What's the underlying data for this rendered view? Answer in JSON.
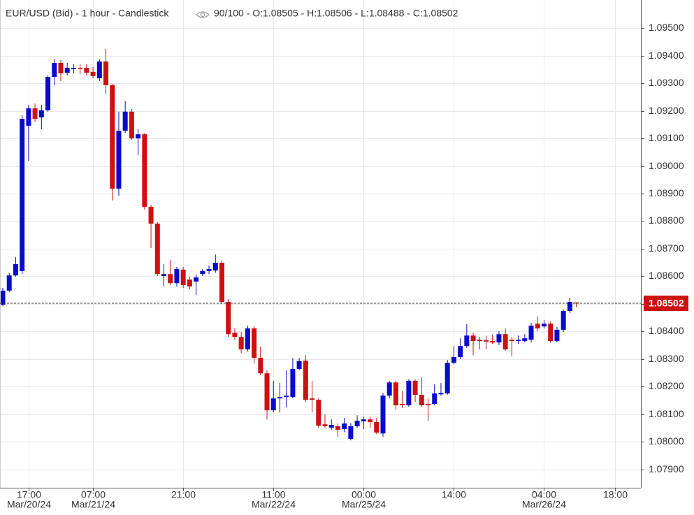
{
  "chart_data": {
    "type": "candlestick",
    "title": "EUR/USD (Bid) - 1 hour - Candlestick",
    "header_stats": "90/100 - O:1.08505 - H:1.08506 - L:1.08488 - C:1.08502",
    "up_color": "#0a0acc",
    "down_color": "#cc1111",
    "grid": true,
    "ylim": [
      1.07833,
      1.09602
    ],
    "yticks": [
      {
        "value": 1.079,
        "label": "1.07900"
      },
      {
        "value": 1.08,
        "label": "1.08000"
      },
      {
        "value": 1.081,
        "label": "1.08100"
      },
      {
        "value": 1.082,
        "label": "1.08200"
      },
      {
        "value": 1.083,
        "label": "1.08300"
      },
      {
        "value": 1.084,
        "label": "1.08400"
      },
      {
        "value": 1.085,
        "label": "1.08500"
      },
      {
        "value": 1.086,
        "label": "1.08600"
      },
      {
        "value": 1.087,
        "label": "1.08700"
      },
      {
        "value": 1.088,
        "label": "1.08800"
      },
      {
        "value": 1.089,
        "label": "1.08900"
      },
      {
        "value": 1.09,
        "label": "1.09000"
      },
      {
        "value": 1.091,
        "label": "1.09100"
      },
      {
        "value": 1.092,
        "label": "1.09200"
      },
      {
        "value": 1.093,
        "label": "1.09300"
      },
      {
        "value": 1.094,
        "label": "1.09400"
      },
      {
        "value": 1.095,
        "label": "1.09500"
      }
    ],
    "last_price": 1.08502,
    "categories": [
      null,
      null,
      null,
      null,
      "17:00",
      null,
      null,
      null,
      null,
      null,
      null,
      null,
      null,
      null,
      "07:00",
      null,
      null,
      null,
      null,
      null,
      null,
      null,
      null,
      null,
      null,
      null,
      null,
      null,
      "21:00",
      null,
      null,
      null,
      null,
      null,
      null,
      null,
      null,
      null,
      null,
      null,
      null,
      null,
      "11:00",
      null,
      null,
      null,
      null,
      null,
      null,
      null,
      null,
      null,
      null,
      null,
      null,
      null,
      "00:00",
      null,
      null,
      null,
      null,
      null,
      null,
      null,
      null,
      null,
      null,
      null,
      null,
      null,
      "14:00",
      null,
      null,
      null,
      null,
      null,
      null,
      null,
      null,
      null,
      null,
      null,
      null,
      null,
      "04:00",
      null,
      null,
      null,
      null,
      null,
      null,
      null,
      null,
      null,
      null,
      "18:00"
    ],
    "dates": [
      null,
      null,
      null,
      null,
      "Mar/20/24",
      null,
      null,
      null,
      null,
      null,
      null,
      null,
      null,
      null,
      "Mar/21/24",
      null,
      null,
      null,
      null,
      null,
      null,
      null,
      null,
      null,
      null,
      null,
      null,
      null,
      null,
      null,
      null,
      null,
      null,
      null,
      null,
      null,
      null,
      null,
      null,
      null,
      null,
      null,
      "Mar/22/24",
      null,
      null,
      null,
      null,
      null,
      null,
      null,
      null,
      null,
      null,
      null,
      null,
      null,
      "Mar/25/24",
      null,
      null,
      null,
      null,
      null,
      null,
      null,
      null,
      null,
      null,
      null,
      null,
      null,
      null,
      null,
      null,
      null,
      null,
      null,
      null,
      null,
      null,
      null,
      null,
      null,
      null,
      null,
      "Mar/26/24",
      null,
      null,
      null,
      null,
      null,
      null,
      null,
      null,
      null,
      null,
      null
    ],
    "open": [
      1.08497,
      1.08548,
      1.08603,
      1.08619,
      1.09146,
      1.09209,
      1.09176,
      1.09202,
      1.09323,
      1.09374,
      1.09338,
      1.09351,
      1.09356,
      1.09356,
      1.09341,
      1.09318,
      1.09379,
      1.09293,
      1.08918,
      1.09128,
      1.09197,
      1.091,
      1.09115,
      1.08852,
      1.08791,
      1.08601,
      1.08608,
      1.08575,
      1.08624,
      1.08588,
      1.08581,
      1.08608,
      1.08619,
      1.08621,
      1.08649,
      1.08507,
      1.08395,
      1.0838,
      1.08335,
      1.08411,
      1.08304,
      1.08248,
      1.08114,
      1.08157,
      1.08162,
      1.08162,
      1.08264,
      1.08294,
      1.08157,
      1.08152,
      1.08063,
      1.08051,
      1.08056,
      1.08046,
      1.0801,
      1.08056,
      1.08074,
      1.08081,
      1.08071,
      1.0803,
      1.08167,
      1.08215,
      1.08137,
      1.08132,
      1.08221,
      1.0817,
      1.08137,
      1.08137,
      1.08172,
      1.08175,
      1.08286,
      1.08307,
      1.08347,
      1.08385,
      1.0837,
      1.08368,
      1.08365,
      1.0836,
      1.0839,
      1.0837,
      1.08365,
      1.08365,
      1.0837,
      1.08428,
      1.08418,
      1.08428,
      1.08365,
      1.08406,
      1.08474,
      1.08505,
      null,
      null,
      null,
      null,
      null,
      null
    ],
    "high": [
      1.08558,
      1.08613,
      1.08669,
      1.09184,
      1.09222,
      1.09227,
      1.09222,
      1.09328,
      1.09387,
      1.09384,
      1.09374,
      1.09369,
      1.09369,
      1.09369,
      1.09359,
      1.09387,
      1.09425,
      1.09298,
      1.09197,
      1.09235,
      1.09207,
      1.09133,
      1.0912,
      1.08859,
      1.08796,
      1.08644,
      1.08659,
      1.08634,
      1.08634,
      1.08598,
      1.08608,
      1.08626,
      1.08639,
      1.08679,
      1.08657,
      1.08517,
      1.08411,
      1.08398,
      1.08421,
      1.08421,
      1.08345,
      1.08259,
      1.08221,
      1.08213,
      1.08259,
      1.08304,
      1.08304,
      1.08314,
      1.08221,
      1.08157,
      1.08099,
      1.08081,
      1.08066,
      1.08086,
      1.08068,
      1.08096,
      1.08091,
      1.08091,
      1.08086,
      1.08177,
      1.08221,
      1.08221,
      1.08183,
      1.08226,
      1.08226,
      1.08233,
      1.08157,
      1.08208,
      1.08213,
      1.08297,
      1.08347,
      1.08375,
      1.08426,
      1.08395,
      1.0838,
      1.08385,
      1.0839,
      1.08401,
      1.08411,
      1.0838,
      1.08385,
      1.0839,
      1.08431,
      1.08454,
      1.08441,
      1.08436,
      1.08416,
      1.08479,
      1.08522,
      1.08506,
      null,
      null,
      null,
      null,
      null,
      null
    ],
    "low": [
      1.08492,
      1.08542,
      1.08598,
      1.08608,
      1.09019,
      1.09159,
      1.09133,
      1.09197,
      1.09293,
      1.09308,
      1.09328,
      1.09336,
      1.09333,
      1.09328,
      1.09318,
      1.09308,
      1.0926,
      1.08875,
      1.08892,
      1.0912,
      1.09095,
      1.09039,
      1.08842,
      1.08702,
      1.08601,
      1.08563,
      1.08568,
      1.08563,
      1.08558,
      1.08553,
      1.08532,
      1.08601,
      1.08608,
      1.08613,
      1.08499,
      1.0838,
      1.0837,
      1.08322,
      1.08327,
      1.08284,
      1.08241,
      1.08081,
      1.08106,
      1.08106,
      1.08124,
      1.08157,
      1.08259,
      1.08145,
      1.08106,
      1.08051,
      1.08051,
      1.08043,
      1.08018,
      1.08035,
      1.08005,
      1.08051,
      1.08046,
      1.08051,
      1.08028,
      1.08018,
      1.08157,
      1.08117,
      1.08122,
      1.08127,
      1.08145,
      1.08127,
      1.08074,
      1.08132,
      1.08167,
      1.0817,
      1.08281,
      1.08299,
      1.0834,
      1.08314,
      1.08335,
      1.08335,
      1.08355,
      1.0835,
      1.0833,
      1.08309,
      1.08355,
      1.0836,
      1.0836,
      1.08401,
      1.08411,
      1.0836,
      1.0836,
      1.08398,
      1.08466,
      1.08488,
      null,
      null,
      null,
      null,
      null,
      null
    ],
    "close": [
      1.08548,
      1.08603,
      1.08644,
      1.09171,
      1.09209,
      1.09171,
      1.09202,
      1.09323,
      1.09374,
      1.09336,
      1.09356,
      1.09356,
      1.09354,
      1.09338,
      1.09326,
      1.09379,
      1.09293,
      1.08918,
      1.09128,
      1.09197,
      1.091,
      1.09115,
      1.08852,
      1.08791,
      1.08608,
      1.08608,
      1.08575,
      1.08626,
      1.08568,
      1.08563,
      1.08596,
      1.08619,
      1.08626,
      1.08649,
      1.08507,
      1.0839,
      1.0838,
      1.08335,
      1.08411,
      1.08304,
      1.08248,
      1.08114,
      1.08157,
      1.08162,
      1.08167,
      1.08264,
      1.08292,
      1.08152,
      1.08152,
      1.08058,
      1.08056,
      1.08061,
      1.08043,
      1.08066,
      1.08056,
      1.08076,
      1.08081,
      1.08071,
      1.08033,
      1.08167,
      1.08215,
      1.08132,
      1.08132,
      1.08221,
      1.0817,
      1.08132,
      1.08132,
      1.08175,
      1.08177,
      1.08286,
      1.08307,
      1.08347,
      1.08385,
      1.08365,
      1.08365,
      1.08363,
      1.0836,
      1.0839,
      1.08335,
      1.08365,
      1.0837,
      1.08375,
      1.08421,
      1.08411,
      1.08428,
      1.08365,
      1.08406,
      1.08474,
      1.08507,
      1.08502,
      null,
      null,
      null,
      null,
      null,
      null
    ]
  }
}
